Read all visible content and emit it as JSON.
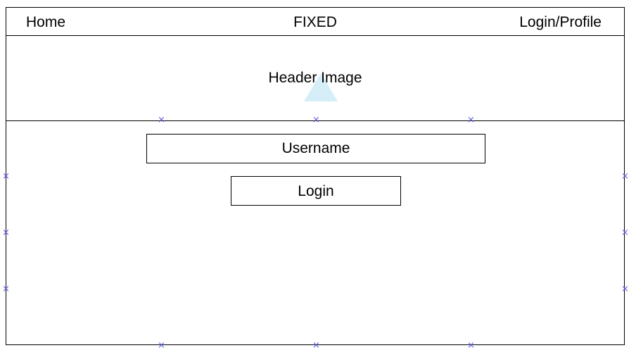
{
  "nav": {
    "home_label": "Home",
    "fixed_label": "FIXED",
    "login_profile_label": "Login/Profile"
  },
  "header": {
    "image_label": "Header Image"
  },
  "form": {
    "username_placeholder": "Username",
    "login_label": "Login"
  },
  "colors": {
    "marker": "#5b5be0",
    "image_placeholder": "#d6eef8"
  }
}
